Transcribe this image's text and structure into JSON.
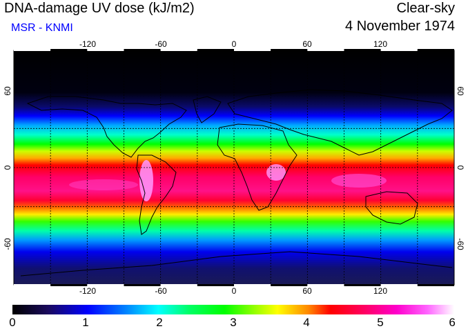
{
  "header": {
    "title": "DNA-damage UV dose (kJ/m2)",
    "source": "MSR - KNMI",
    "condition": "Clear-sky",
    "date": "4 November 1974"
  },
  "map": {
    "lon_ticks": [
      "-120",
      "-60",
      "0",
      "60",
      "120"
    ],
    "lat_ticks": [
      "60",
      "0",
      "-60"
    ],
    "lon_range": [
      -180,
      180
    ],
    "lat_range": [
      -90,
      90
    ],
    "grid": true,
    "gridlines_lon": [
      -150,
      -120,
      -90,
      -60,
      -30,
      0,
      30,
      60,
      90,
      120,
      150
    ],
    "gridlines_lat": [
      -30,
      0,
      30
    ]
  },
  "colorbar": {
    "labels": [
      "0",
      "1",
      "2",
      "3",
      "4",
      "5",
      "6"
    ],
    "range": [
      0,
      6
    ],
    "colors": [
      "#000000",
      "#1a0a5c",
      "#0000ff",
      "#0088ff",
      "#00ffff",
      "#00ff66",
      "#00ff00",
      "#99ff00",
      "#ffff00",
      "#ff8800",
      "#ff0000",
      "#ff0066",
      "#ff00cc",
      "#ff66ff",
      "#ffffff"
    ]
  }
}
